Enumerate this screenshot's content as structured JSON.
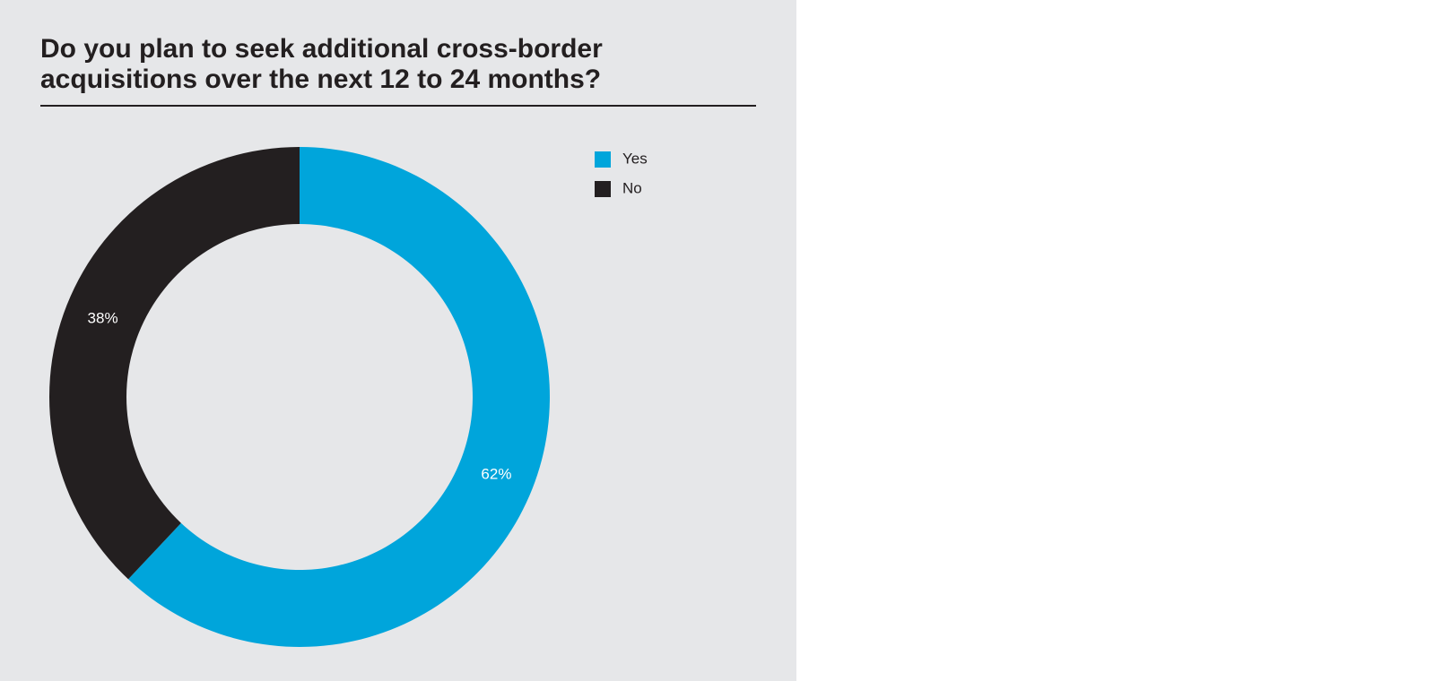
{
  "chart_data": {
    "type": "pie",
    "donut": true,
    "title": "Do you plan to seek additional cross-border acquisitions over the next 12 to 24 months?",
    "categories": [
      "Yes",
      "No"
    ],
    "values": [
      62,
      38
    ],
    "value_labels": [
      "62%",
      "38%"
    ],
    "colors": [
      "#00a5db",
      "#231f20"
    ]
  }
}
